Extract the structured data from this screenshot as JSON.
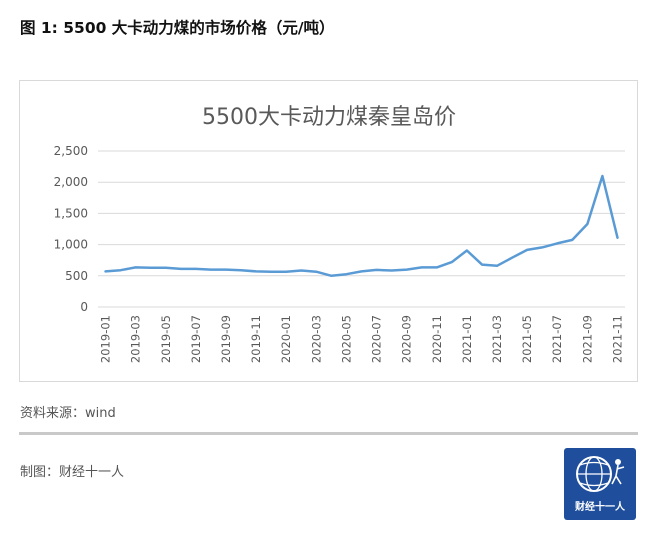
{
  "figure": {
    "title": "图 1: 5500 大卡动力煤的市场价格（元/吨）",
    "source": "资料来源：wind",
    "author": "制图：财经十一人",
    "logo_text": "财经十一人"
  },
  "chart_data": {
    "type": "line",
    "title": "5500大卡动力煤秦皇岛价",
    "xlabel": "",
    "ylabel": "",
    "ylim": [
      0,
      2500
    ],
    "yticks": [
      0,
      500,
      1000,
      1500,
      2000,
      2500
    ],
    "ytick_labels": [
      "0",
      "500",
      "1,000",
      "1,500",
      "2,000",
      "2,500"
    ],
    "grid": true,
    "color": "#5b9bd5",
    "x": [
      "2019-01",
      "2019-02",
      "2019-03",
      "2019-04",
      "2019-05",
      "2019-06",
      "2019-07",
      "2019-08",
      "2019-09",
      "2019-10",
      "2019-11",
      "2019-12",
      "2020-01",
      "2020-02",
      "2020-03",
      "2020-04",
      "2020-05",
      "2020-06",
      "2020-07",
      "2020-08",
      "2020-09",
      "2020-10",
      "2020-11",
      "2020-12",
      "2021-01",
      "2021-02",
      "2021-03",
      "2021-04",
      "2021-05",
      "2021-06",
      "2021-07",
      "2021-08",
      "2021-09",
      "2021-10",
      "2021-11"
    ],
    "xtick_labels": [
      "2019-01",
      "2019-03",
      "2019-05",
      "2019-07",
      "2019-09",
      "2019-11",
      "2020-01",
      "2020-03",
      "2020-05",
      "2020-07",
      "2020-09",
      "2020-11",
      "2021-01",
      "2021-03",
      "2021-05",
      "2021-07",
      "2021-09",
      "2021-11"
    ],
    "series": [
      {
        "values": [
          570,
          590,
          635,
          630,
          630,
          610,
          610,
          600,
          600,
          590,
          570,
          565,
          565,
          585,
          565,
          500,
          525,
          570,
          595,
          585,
          600,
          635,
          635,
          720,
          905,
          680,
          660,
          790,
          915,
          955,
          1020,
          1075,
          1330,
          2100,
          1110
        ]
      }
    ]
  }
}
